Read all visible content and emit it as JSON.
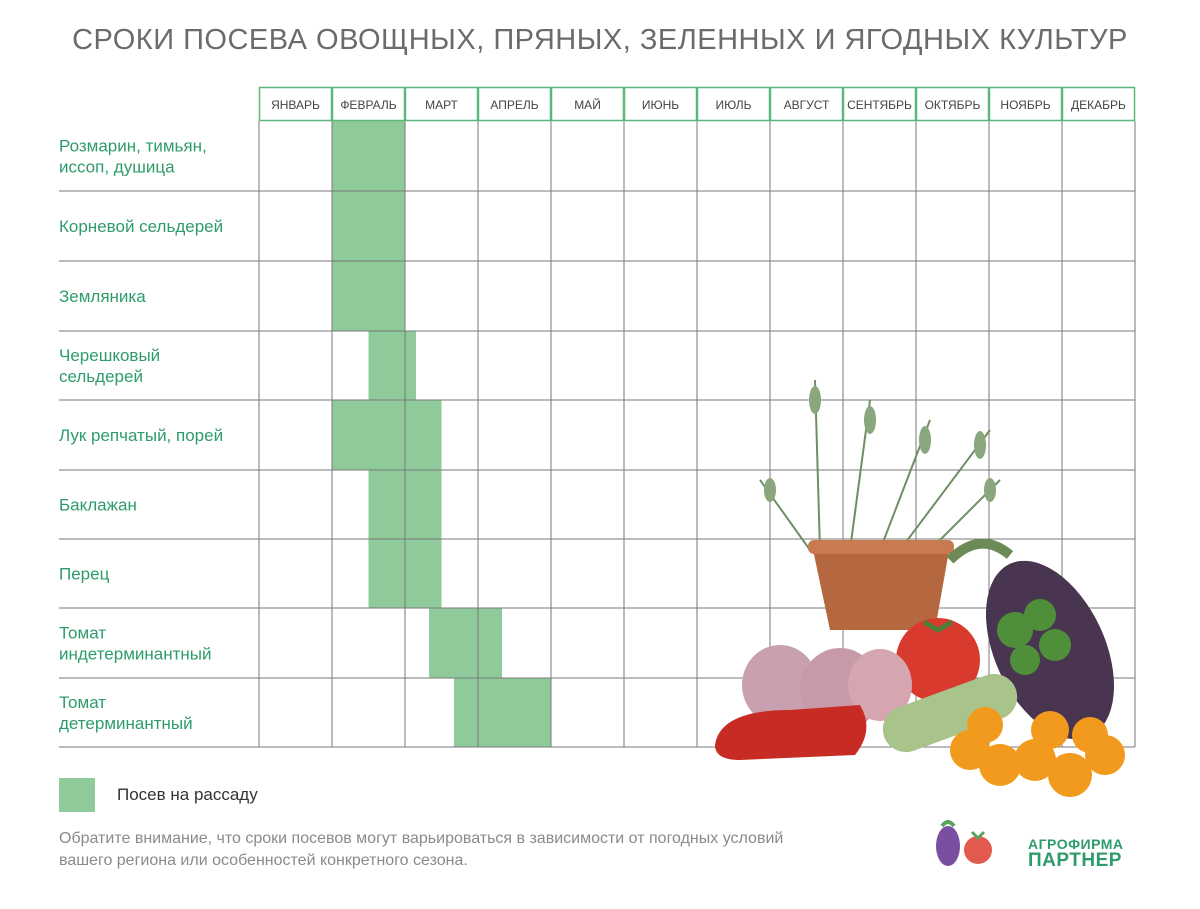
{
  "title": "СРОКИ ПОСЕВА ОВОЩНЫХ, ПРЯНЫХ, ЗЕЛЕННЫХ И ЯГОДНЫХ КУЛЬТУР",
  "colors": {
    "accent": "#2e9c6a",
    "header_border": "#5cb87a",
    "bar": "#8fca9b",
    "grid": "#7a7a7a"
  },
  "chart_data": {
    "type": "table",
    "months": [
      "ЯНВАРЬ",
      "ФЕВРАЛЬ",
      "МАРТ",
      "АПРЕЛЬ",
      "МАЙ",
      "ИЮНЬ",
      "ИЮЛЬ",
      "АВГУСТ",
      "СЕНТЯБРЬ",
      "ОКТЯБРЬ",
      "НОЯБРЬ",
      "ДЕКАБРЬ"
    ],
    "rows": [
      {
        "label": [
          "Розмарин, тимьян,",
          "иссоп, душица"
        ],
        "spans": [
          [
            1,
            2
          ]
        ]
      },
      {
        "label": [
          "Корневой сельдерей"
        ],
        "spans": [
          [
            1,
            2
          ]
        ]
      },
      {
        "label": [
          "Земляника"
        ],
        "spans": [
          [
            1,
            2
          ]
        ]
      },
      {
        "label": [
          "Черешковый",
          "сельдерей"
        ],
        "spans": [
          [
            1.5,
            2.15
          ]
        ]
      },
      {
        "label": [
          "Лук репчатый, порей"
        ],
        "spans": [
          [
            1,
            2.5
          ]
        ]
      },
      {
        "label": [
          "Баклажан"
        ],
        "spans": [
          [
            1.5,
            2.5
          ]
        ]
      },
      {
        "label": [
          "Перец"
        ],
        "spans": [
          [
            1.5,
            2.5
          ]
        ]
      },
      {
        "label": [
          "Томат",
          "индетерминантный"
        ],
        "spans": [
          [
            2.33,
            3.33
          ]
        ]
      },
      {
        "label": [
          "Томат",
          "детерминантный"
        ],
        "spans": [
          [
            2.67,
            4
          ]
        ]
      }
    ],
    "unit": "months (0 = start of January)"
  },
  "legend": {
    "label": "Посев на рассаду"
  },
  "note": [
    "Обратите внимание, что сроки посевов могут варьироваться в зависимости от погодных условий",
    "вашего региона или особенностей конкретного сезона."
  ],
  "logo": {
    "line1": "АГРОФИРМА",
    "line2": "ПАРТНЕР"
  }
}
